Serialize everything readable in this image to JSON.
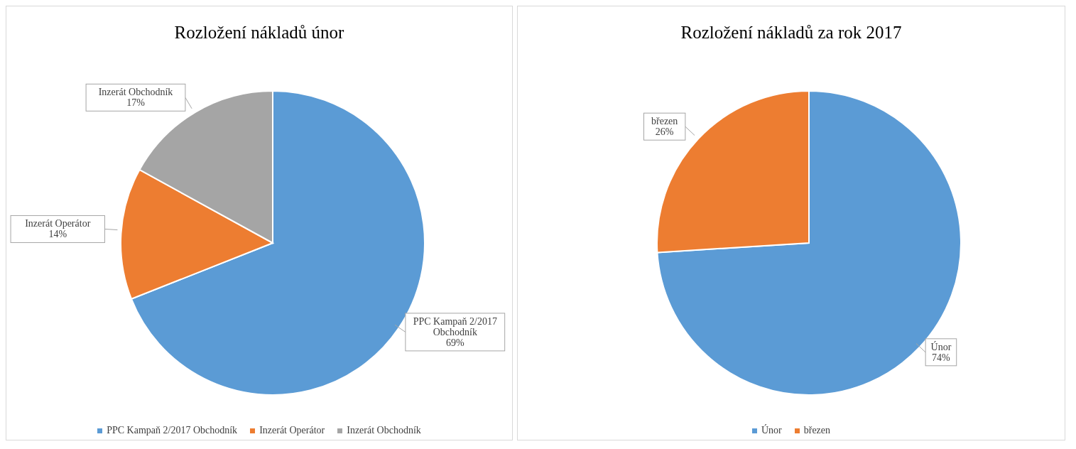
{
  "chart_data": [
    {
      "type": "pie",
      "title": "Rozložení nákladů únor",
      "categories": [
        "PPC Kampaň 2/2017 Obchodník",
        "Inzerát Operátor",
        "Inzerát Obchodník"
      ],
      "values": [
        69,
        14,
        17
      ],
      "value_labels": [
        "69%",
        "14%",
        "17%"
      ],
      "colors": [
        "#5b9bd5",
        "#ed7d31",
        "#a5a5a5"
      ],
      "legend": "bottom"
    },
    {
      "type": "pie",
      "title": "Rozložení nákladů za rok 2017",
      "categories": [
        "Únor",
        "březen"
      ],
      "values": [
        74,
        26
      ],
      "value_labels": [
        "74%",
        "26%"
      ],
      "colors": [
        "#5b9bd5",
        "#ed7d31"
      ],
      "legend": "bottom"
    }
  ]
}
